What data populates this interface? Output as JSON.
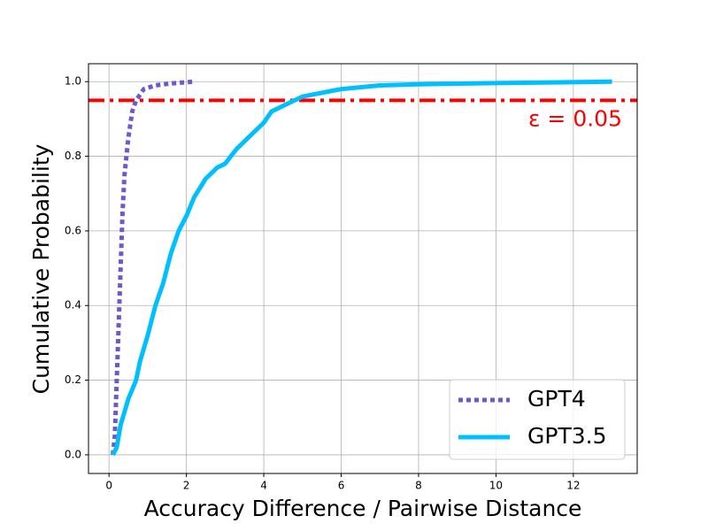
{
  "chart_data": {
    "type": "line",
    "xlabel": "Accuracy Difference / Pairwise Distance",
    "ylabel": "Cumulative Probability",
    "xlim": [
      -0.53,
      13.65
    ],
    "ylim": [
      -0.05,
      1.048
    ],
    "xticks": [
      0,
      2,
      4,
      6,
      8,
      10,
      12
    ],
    "yticks": [
      {
        "value": 0,
        "label": "0.0"
      },
      0.2,
      0.4,
      0.6,
      0.8,
      {
        "value": 1,
        "label": "1.0"
      }
    ],
    "grid": true,
    "legend": "lower right",
    "reference_line": {
      "y": 0.95,
      "color": "#ff0000",
      "label": "ε = 0.05"
    },
    "series": [
      {
        "name": "GPT4",
        "color": "#6a5acd",
        "style": "dotted",
        "x": [
          0.1,
          0.15,
          0.2,
          0.25,
          0.3,
          0.35,
          0.4,
          0.5,
          0.6,
          0.7,
          0.9,
          1.2,
          1.6,
          2.2
        ],
        "values": [
          0,
          0.05,
          0.2,
          0.35,
          0.5,
          0.65,
          0.75,
          0.85,
          0.92,
          0.95,
          0.98,
          0.99,
          0.995,
          1.0
        ]
      },
      {
        "name": "GPT3.5",
        "color": "#00bfff",
        "style": "solid",
        "x": [
          0.1,
          0.2,
          0.3,
          0.5,
          0.7,
          0.8,
          1.0,
          1.2,
          1.4,
          1.6,
          1.8,
          2.0,
          2.2,
          2.5,
          2.8,
          3.0,
          3.3,
          3.6,
          4.0,
          4.2,
          4.6,
          5.0,
          5.5,
          6.0,
          7.0,
          8.0,
          10,
          13
        ],
        "values": [
          0,
          0.02,
          0.08,
          0.15,
          0.2,
          0.25,
          0.32,
          0.4,
          0.46,
          0.54,
          0.6,
          0.64,
          0.69,
          0.74,
          0.77,
          0.78,
          0.82,
          0.85,
          0.89,
          0.92,
          0.94,
          0.96,
          0.97,
          0.98,
          0.99,
          0.993,
          0.996,
          1.0
        ]
      }
    ]
  }
}
